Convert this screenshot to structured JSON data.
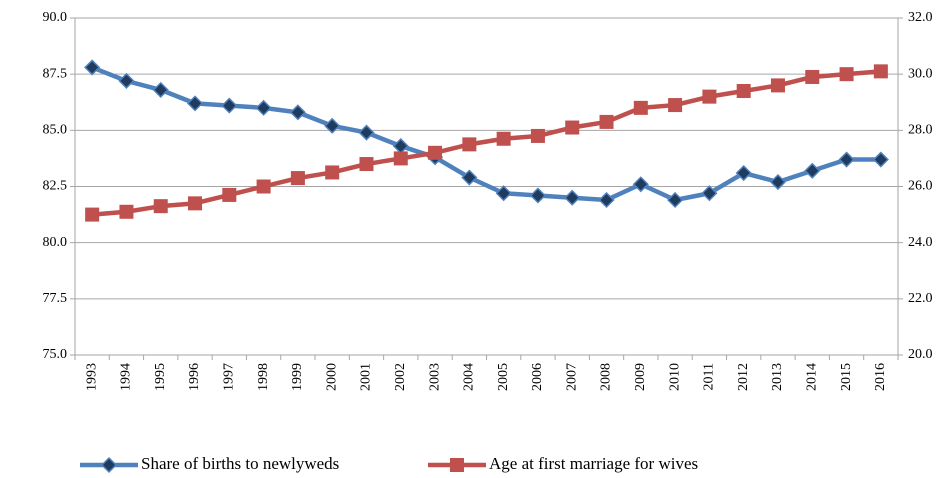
{
  "chart_data": {
    "type": "line",
    "categories": [
      "1993",
      "1994",
      "1995",
      "1996",
      "1997",
      "1998",
      "1999",
      "2000",
      "2001",
      "2002",
      "2003",
      "2004",
      "2005",
      "2006",
      "2007",
      "2008",
      "2009",
      "2010",
      "2011",
      "2012",
      "2013",
      "2014",
      "2015",
      "2016"
    ],
    "series": [
      {
        "name": "Share of births to newlyweds",
        "color": "#4f81bd",
        "marker": "diamond",
        "values": [
          87.8,
          87.2,
          86.8,
          86.2,
          86.1,
          86.0,
          85.8,
          85.2,
          84.9,
          84.3,
          83.8,
          82.9,
          82.2,
          82.1,
          82.0,
          81.9,
          82.6,
          81.9,
          82.2,
          83.1,
          82.7,
          83.2,
          83.7,
          83.7
        ]
      },
      {
        "name": "Age at first marriage for wives",
        "color": "#c0504d",
        "marker": "square",
        "axis": "y2",
        "values": [
          25.0,
          25.1,
          25.3,
          25.4,
          25.7,
          26.0,
          26.3,
          26.5,
          26.8,
          27.0,
          27.2,
          27.5,
          27.7,
          27.8,
          28.1,
          28.3,
          28.8,
          28.9,
          29.2,
          29.4,
          29.6,
          29.9,
          30.0,
          30.1
        ]
      }
    ],
    "ylim": [
      75,
      90
    ],
    "yticks": [
      {
        "value": 75,
        "label": "75.0"
      },
      {
        "value": 77.5,
        "label": "77.5"
      },
      {
        "value": 80,
        "label": "80.0"
      },
      {
        "value": 82.5,
        "label": "82.5"
      },
      {
        "value": 85,
        "label": "85.0"
      },
      {
        "value": 87.5,
        "label": "87.5"
      },
      {
        "value": 90,
        "label": "90.0"
      }
    ],
    "y2lim": [
      20,
      32
    ],
    "y2ticks": [
      {
        "value": 20,
        "label": "20.0"
      },
      {
        "value": 22,
        "label": "22.0"
      },
      {
        "value": 24,
        "label": "24.0"
      },
      {
        "value": 26,
        "label": "26.0"
      },
      {
        "value": 28,
        "label": "28.0"
      },
      {
        "value": 30,
        "label": "30.0"
      },
      {
        "value": 32,
        "label": "32.0"
      }
    ],
    "grid": true,
    "legend": "bottom"
  }
}
